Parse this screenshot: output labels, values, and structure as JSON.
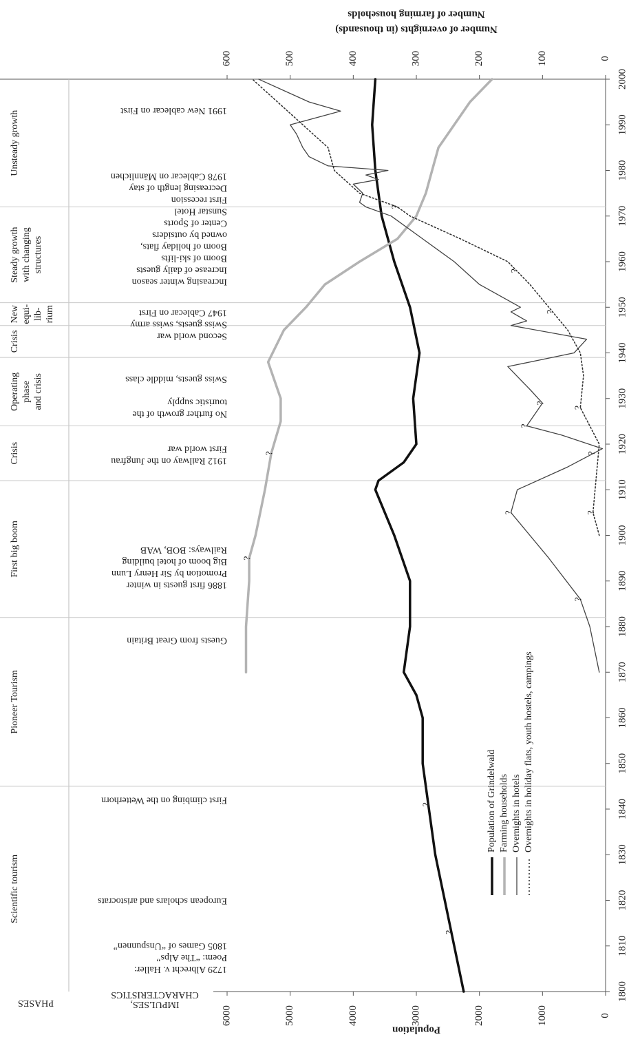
{
  "chart_data": {
    "type": "line",
    "ylabel": "Population",
    "y2label": [
      "Number of overnights (in thousands)",
      "Number of farming households"
    ],
    "phases_header": "PHASES",
    "characteristics_header": [
      "IMPULSES,",
      "CHARACTERISTICS"
    ],
    "xlim": [
      1800,
      2000
    ],
    "xticks": [
      1800,
      1810,
      1820,
      1830,
      1840,
      1850,
      1860,
      1870,
      1880,
      1890,
      1900,
      1910,
      1920,
      1930,
      1940,
      1950,
      1960,
      1970,
      1980,
      1990,
      2000
    ],
    "ylim": [
      0,
      6000
    ],
    "yticks": [
      0,
      1000,
      2000,
      3000,
      4000,
      5000,
      6000
    ],
    "y2lim": [
      0,
      600
    ],
    "y2ticks": [
      0,
      100,
      200,
      300,
      400,
      500,
      600
    ],
    "series": [
      {
        "name": "Population of Grindelwald",
        "color": "#111111",
        "width": 3.5,
        "dash": "none",
        "axis": "y",
        "x": [
          1800,
          1810,
          1820,
          1830,
          1840,
          1850,
          1860,
          1865,
          1870,
          1880,
          1890,
          1900,
          1905,
          1910,
          1912,
          1916,
          1920,
          1930,
          1940,
          1950,
          1960,
          1970,
          1980,
          1990,
          2000
        ],
        "values": [
          2250,
          2400,
          2550,
          2700,
          2800,
          2900,
          2900,
          3000,
          3200,
          3100,
          3100,
          3350,
          3500,
          3650,
          3600,
          3200,
          3000,
          3050,
          2950,
          3100,
          3350,
          3550,
          3650,
          3700,
          3650
        ]
      },
      {
        "name": "Farming households",
        "color": "#b3b3b3",
        "width": 3.5,
        "dash": "none",
        "axis": "y2",
        "x": [
          1870,
          1880,
          1890,
          1895,
          1900,
          1910,
          1918,
          1925,
          1930,
          1938,
          1945,
          1950,
          1955,
          1960,
          1965,
          1970,
          1975,
          1980,
          1985,
          1990,
          1995,
          2000
        ],
        "values": [
          570,
          570,
          565,
          565,
          555,
          540,
          530,
          515,
          515,
          535,
          510,
          475,
          445,
          390,
          330,
          300,
          285,
          275,
          265,
          240,
          215,
          180
        ]
      },
      {
        "name": "Overnights in hotels",
        "color": "#444444",
        "width": 1.3,
        "dash": "none",
        "axis": "y2",
        "x": [
          1870,
          1880,
          1886,
          1895,
          1905,
          1910,
          1915,
          1919,
          1922,
          1924,
          1929,
          1932,
          1937,
          1940,
          1943,
          1946,
          1947,
          1949,
          1950,
          1955,
          1960,
          1965,
          1970,
          1972,
          1973,
          1975,
          1977,
          1978,
          1979,
          1980,
          1981,
          1983,
          1985,
          1988,
          1990,
          1993,
          1995,
          2000
        ],
        "values": [
          10,
          25,
          40,
          90,
          150,
          140,
          60,
          5,
          70,
          125,
          100,
          120,
          155,
          50,
          30,
          150,
          125,
          150,
          135,
          200,
          240,
          290,
          340,
          380,
          390,
          385,
          400,
          360,
          380,
          345,
          440,
          470,
          480,
          490,
          500,
          420,
          470,
          550
        ]
      },
      {
        "name": "Overnights in holiday flats, youth hostels, campings",
        "color": "#333333",
        "width": 1.6,
        "dash": "2,3",
        "axis": "y2",
        "x": [
          1900,
          1905,
          1920,
          1928,
          1935,
          1940,
          1945,
          1950,
          1955,
          1960,
          1965,
          1970,
          1972,
          1975,
          1980,
          1985,
          1990,
          1995,
          2000
        ],
        "values": [
          10,
          20,
          10,
          40,
          35,
          40,
          60,
          90,
          120,
          155,
          230,
          310,
          330,
          390,
          430,
          440,
          480,
          520,
          560
        ]
      }
    ],
    "phases": [
      {
        "label": [
          "Scientific tourism"
        ],
        "start": 1800,
        "end": 1845
      },
      {
        "label": [
          "Pioneer Tourism"
        ],
        "start": 1845,
        "end": 1882
      },
      {
        "label": [
          "First big boom"
        ],
        "start": 1882,
        "end": 1912
      },
      {
        "label": [
          "Crisis"
        ],
        "start": 1912,
        "end": 1924
      },
      {
        "label": [
          "Operating",
          "phase",
          "and crisis"
        ],
        "start": 1924,
        "end": 1939
      },
      {
        "label": [
          "Crisis"
        ],
        "start": 1939,
        "end": 1946
      },
      {
        "label": [
          "New",
          "equi-",
          "lib-",
          "rium"
        ],
        "start": 1946,
        "end": 1951
      },
      {
        "label": [
          "Steady growth",
          "with changing",
          "structures"
        ],
        "start": 1951,
        "end": 1972
      },
      {
        "label": [
          "Unsteady growth"
        ],
        "start": 1972,
        "end": 2000
      }
    ],
    "characteristics": [
      {
        "x": 1807.5,
        "lines": [
          "1729 Albrecht v. Haller:",
          "Poem: “The Alps”",
          "1805 Games of “Unspunnen”"
        ]
      },
      {
        "x": 1820,
        "lines": [
          "European scholars and aristocrats"
        ]
      },
      {
        "x": 1842,
        "lines": [
          "First climbing on the Wetterhorn"
        ]
      },
      {
        "x": 1877,
        "lines": [
          "Guests from Great Britain"
        ]
      },
      {
        "x": 1893,
        "lines": [
          "1886 first guests in winter",
          "Promotion by Sir Henry Lunn",
          "Big boom of hotel building",
          "Railways: BOB, WAB"
        ]
      },
      {
        "x": 1917.7,
        "lines": [
          "1912 Railway on the Jungfrau",
          "First world war"
        ]
      },
      {
        "x": 1928,
        "lines": [
          "No further growth of the",
          "touristic supply"
        ]
      },
      {
        "x": 1934.3,
        "lines": [
          "Swiss guests, middle class"
        ]
      },
      {
        "x": 1946.3,
        "lines": [
          "Second world war",
          "Swiss guests, swiss army",
          "1947 Cablecar on First"
        ]
      },
      {
        "x": 1967.2,
        "lines": [
          "Increasing winter season",
          "Increase of daily guests",
          "Boom of ski-lifts",
          "Boom of holiday flats,",
          "owned by outsiders",
          "Center of Sports",
          "Sunstar Hotel",
          "First recession",
          "Decreasing length of stay",
          "1978 Cablecar on Männlichen"
        ]
      },
      {
        "x": 1993.2,
        "lines": [
          "1991 New cablecar on First"
        ]
      }
    ],
    "annotations": [
      {
        "text": "?",
        "series": 0,
        "x": 1813
      },
      {
        "text": "?",
        "series": 0,
        "x": 1841
      },
      {
        "text": "?",
        "series": 1,
        "x": 1895
      },
      {
        "text": "?",
        "series": 1,
        "x": 1918
      },
      {
        "text": "?",
        "series": 2,
        "x": 1886
      },
      {
        "text": "?",
        "series": 2,
        "x": 1905
      },
      {
        "text": "?",
        "series": 2,
        "x": 1918
      },
      {
        "text": "?",
        "series": 2,
        "x": 1924
      },
      {
        "text": "?",
        "series": 2,
        "x": 1929
      },
      {
        "text": "?",
        "series": 3,
        "x": 1905
      },
      {
        "text": "?",
        "series": 3,
        "x": 1928
      },
      {
        "text": "?",
        "series": 3,
        "x": 1949
      },
      {
        "text": "?",
        "series": 3,
        "x": 1958
      },
      {
        "text": "?",
        "series": 3,
        "x": 1972
      }
    ]
  }
}
